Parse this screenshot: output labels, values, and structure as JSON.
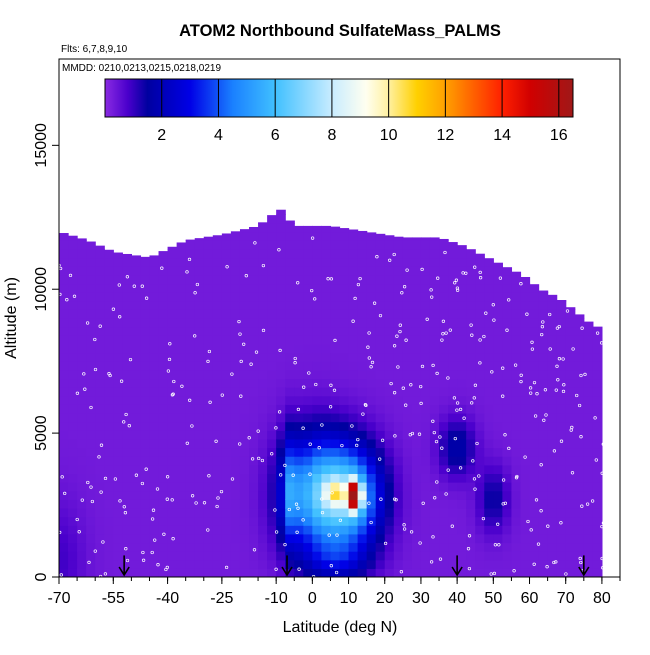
{
  "chart_data": {
    "type": "heatmap",
    "title": "ATOM2 Northbound SulfateMass_PALMS",
    "annotations": {
      "flights": "Flts: 6,7,8,9,10",
      "dates": "MMDD: 0210,0213,0215,0218,0219"
    },
    "xlabel": "Latitude (deg N)",
    "ylabel": "Altitude (m)",
    "xlim": [
      -70,
      85
    ],
    "ylim": [
      0,
      18000
    ],
    "x_ticks": [
      {
        "value": -70,
        "label": "-70"
      },
      {
        "value": -55,
        "label": "-55"
      },
      {
        "value": -40,
        "label": "-40"
      },
      {
        "value": -25,
        "label": "-25"
      },
      {
        "value": -10,
        "label": "-10"
      },
      {
        "value": 0,
        "label": "0"
      },
      {
        "value": 10,
        "label": "10"
      },
      {
        "value": 20,
        "label": "20"
      },
      {
        "value": 30,
        "label": "30"
      },
      {
        "value": 40,
        "label": "40"
      },
      {
        "value": 50,
        "label": "50"
      },
      {
        "value": 60,
        "label": "60"
      },
      {
        "value": 70,
        "label": "70"
      },
      {
        "value": 80,
        "label": "80"
      }
    ],
    "y_ticks": [
      {
        "value": 0,
        "label": "0"
      },
      {
        "value": 5000,
        "label": "5000"
      },
      {
        "value": 10000,
        "label": "10000"
      },
      {
        "value": 15000,
        "label": "15000"
      }
    ],
    "colorbar": {
      "min": 0,
      "max": 16.5,
      "ticks": [
        {
          "value": 2,
          "label": "2"
        },
        {
          "value": 4,
          "label": "4"
        },
        {
          "value": 6,
          "label": "6"
        },
        {
          "value": 8,
          "label": "8"
        },
        {
          "value": 10,
          "label": "10"
        },
        {
          "value": 12,
          "label": "12"
        },
        {
          "value": 14,
          "label": "14"
        },
        {
          "value": 16,
          "label": "16"
        }
      ],
      "stops": [
        {
          "v": 0,
          "c": "#8a2be2"
        },
        {
          "v": 0.8,
          "c": "#4a00cc"
        },
        {
          "v": 1.5,
          "c": "#0000a0"
        },
        {
          "v": 3,
          "c": "#0000e6"
        },
        {
          "v": 4.5,
          "c": "#1a80ff"
        },
        {
          "v": 6,
          "c": "#40c0ff"
        },
        {
          "v": 8,
          "c": "#c8ecff"
        },
        {
          "v": 9.2,
          "c": "#fffff0"
        },
        {
          "v": 10,
          "c": "#fff0a0"
        },
        {
          "v": 11,
          "c": "#ffd000"
        },
        {
          "v": 12,
          "c": "#ffa000"
        },
        {
          "v": 13,
          "c": "#ff6000"
        },
        {
          "v": 14,
          "c": "#ff2000"
        },
        {
          "v": 15,
          "c": "#d00000"
        },
        {
          "v": 16.5,
          "c": "#a01818"
        }
      ]
    },
    "envelope": [
      [
        -70,
        12000
      ],
      [
        -62,
        11700
      ],
      [
        -55,
        11300
      ],
      [
        -45,
        11100
      ],
      [
        -35,
        11700
      ],
      [
        -25,
        11900
      ],
      [
        -15,
        12200
      ],
      [
        -9,
        12800
      ],
      [
        -5,
        12200
      ],
      [
        5,
        12200
      ],
      [
        15,
        12000
      ],
      [
        25,
        11800
      ],
      [
        35,
        11800
      ],
      [
        42,
        11500
      ],
      [
        50,
        11000
      ],
      [
        58,
        10500
      ],
      [
        63,
        10000
      ],
      [
        68,
        9700
      ],
      [
        72,
        9300
      ],
      [
        78,
        8700
      ],
      [
        81,
        8700
      ]
    ],
    "background_value": 0.3,
    "features": [
      {
        "lat": 11,
        "alt": 2800,
        "slat": 6.0,
        "salt": 1200,
        "amp": 5.2
      },
      {
        "lat": 1,
        "alt": 2900,
        "slat": 6.5,
        "salt": 1400,
        "amp": 5.0
      },
      {
        "lat": -6,
        "alt": 3000,
        "slat": 1.6,
        "salt": 1300,
        "amp": 2.5
      },
      {
        "lat": 11.5,
        "alt": 2850,
        "slat": 1.3,
        "salt": 320,
        "amp": 13.5
      },
      {
        "lat": 6,
        "alt": 2950,
        "slat": 1.8,
        "salt": 300,
        "amp": 3.2
      },
      {
        "lat": 7,
        "alt": 600,
        "slat": 6.0,
        "salt": 500,
        "amp": 1.6
      },
      {
        "lat": 40,
        "alt": 4500,
        "slat": 3.5,
        "salt": 700,
        "amp": 1.5
      },
      {
        "lat": 50,
        "alt": 2700,
        "slat": 3.0,
        "salt": 800,
        "amp": 1.2
      },
      {
        "lat": -70,
        "alt": 500,
        "slat": 5.0,
        "salt": 1500,
        "amp": 0.6
      }
    ],
    "profile_arrows": [
      -52,
      -7,
      40,
      75
    ]
  }
}
